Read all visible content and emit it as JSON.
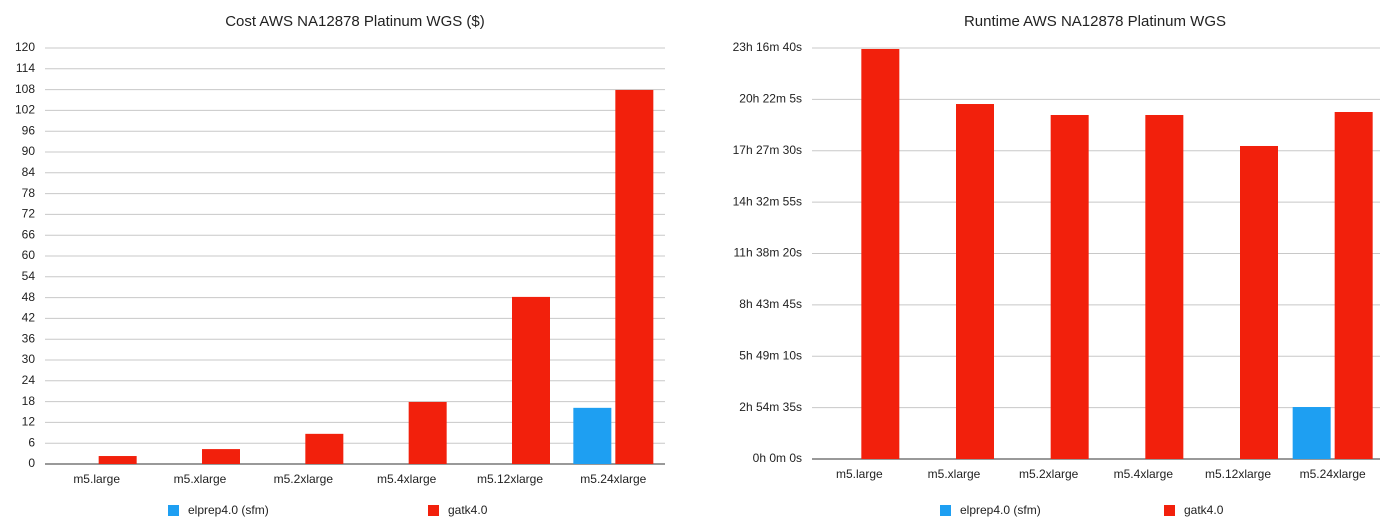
{
  "chart_data": [
    {
      "type": "bar",
      "title": "Cost AWS NA12878 Platinum WGS ($)",
      "categories": [
        "m5.large",
        "m5.xlarge",
        "m5.2xlarge",
        "m5.4xlarge",
        "m5.12xlarge",
        "m5.24xlarge"
      ],
      "series": [
        {
          "name": "elprep4.0 (sfm)",
          "color": "#1e9ff2",
          "values": [
            null,
            null,
            null,
            null,
            null,
            16.2
          ]
        },
        {
          "name": "gatk4.0",
          "color": "#f2200c",
          "values": [
            2.3,
            4.3,
            8.7,
            17.9,
            48.2,
            107.9
          ]
        }
      ],
      "ylim": [
        0,
        120
      ],
      "yticks": [
        0,
        6,
        12,
        18,
        24,
        30,
        36,
        42,
        48,
        54,
        60,
        66,
        72,
        78,
        84,
        90,
        96,
        102,
        108,
        114,
        120
      ],
      "grid": true,
      "legend": "bottom"
    },
    {
      "type": "bar",
      "title": "Runtime AWS NA12878 Platinum WGS",
      "categories": [
        "m5.large",
        "m5.xlarge",
        "m5.2xlarge",
        "m5.4xlarge",
        "m5.12xlarge",
        "m5.24xlarge"
      ],
      "series": [
        {
          "name": "elprep4.0 (sfm)",
          "color": "#1e9ff2",
          "values": [
            null,
            null,
            null,
            null,
            null,
            10600
          ]
        },
        {
          "name": "gatk4.0",
          "color": "#f2200c",
          "values": [
            83600,
            72380,
            70140,
            70140,
            63820,
            70750
          ]
        }
      ],
      "ylim": [
        0,
        83800
      ],
      "yticks": [
        {
          "value": 0,
          "label": "0h 0m 0s"
        },
        {
          "value": 10475,
          "label": "2h 54m 35s"
        },
        {
          "value": 20950,
          "label": "5h 49m 10s"
        },
        {
          "value": 31425,
          "label": "8h 43m 45s"
        },
        {
          "value": 41900,
          "label": "11h 38m 20s"
        },
        {
          "value": 52375,
          "label": "14h 32m 55s"
        },
        {
          "value": 62850,
          "label": "17h 27m 30s"
        },
        {
          "value": 73325,
          "label": "20h 22m 5s"
        },
        {
          "value": 83800,
          "label": "23h 16m 40s"
        }
      ],
      "grid": true,
      "legend": "bottom"
    }
  ]
}
